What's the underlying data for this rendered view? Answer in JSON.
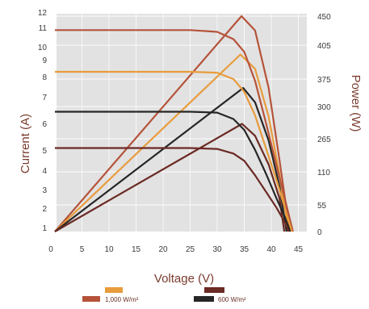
{
  "chart_data": {
    "type": "line",
    "xlabel": "Voltage (V)",
    "ylabel": "Current (A)",
    "y2label": "Power (W)",
    "xlim": [
      0,
      45
    ],
    "x_ticks": [
      "0",
      "5",
      "10",
      "15",
      "20",
      "25",
      "30",
      "35",
      "40",
      "45"
    ],
    "y_ticks": [
      "1",
      "2",
      "3",
      "4",
      "5",
      "6",
      "7",
      "8",
      "9",
      "10",
      "11",
      "12"
    ],
    "y2_ticks": [
      "0",
      "55",
      "110",
      "265",
      "300",
      "375",
      "405",
      "450"
    ],
    "colors": {
      "plot_bg": "#e2e2e2",
      "grid": "#f7f7f7",
      "1000": "#b5533a",
      "800": "#e89c3c",
      "600": "#262626",
      "400": "#6b2a24"
    },
    "iv_series": [
      {
        "key": "1000",
        "x": [
          0,
          25,
          30,
          33,
          35,
          37,
          39,
          41,
          42.5,
          44
        ],
        "y": [
          11.1,
          11.1,
          11.0,
          10.6,
          9.9,
          8.3,
          6.0,
          3.6,
          1.8,
          0
        ]
      },
      {
        "key": "800",
        "x": [
          0,
          25,
          30,
          33,
          35,
          37,
          39,
          41,
          42.5,
          43.8
        ],
        "y": [
          8.8,
          8.8,
          8.75,
          8.4,
          7.7,
          6.4,
          4.6,
          2.8,
          1.3,
          0
        ]
      },
      {
        "key": "600",
        "x": [
          0,
          25,
          30,
          33,
          35,
          37,
          39,
          41,
          42.5,
          43.5
        ],
        "y": [
          6.6,
          6.6,
          6.55,
          6.2,
          5.6,
          4.5,
          3.2,
          1.8,
          0.8,
          0
        ]
      },
      {
        "key": "400",
        "x": [
          0,
          25,
          30,
          33,
          35,
          37,
          39,
          41,
          42.5,
          43.2
        ],
        "y": [
          4.6,
          4.6,
          4.55,
          4.3,
          3.9,
          3.1,
          2.2,
          1.3,
          0.5,
          0
        ]
      }
    ],
    "pv_series": [
      {
        "key": "1000",
        "x": [
          0,
          34.5,
          37,
          39.5,
          41.5,
          43.4
        ],
        "y": [
          0,
          450,
          420,
          300,
          150,
          0
        ]
      },
      {
        "key": "800",
        "x": [
          0,
          34.3,
          37,
          39.5,
          41.5,
          43.2
        ],
        "y": [
          0,
          370,
          340,
          240,
          120,
          0
        ]
      },
      {
        "key": "600",
        "x": [
          0,
          34.8,
          37,
          39.5,
          41.5,
          42.8
        ],
        "y": [
          0,
          300,
          270,
          190,
          95,
          0
        ]
      },
      {
        "key": "400",
        "x": [
          0,
          34.6,
          37,
          39.5,
          41.5,
          42.4
        ],
        "y": [
          0,
          225,
          200,
          140,
          70,
          0
        ]
      }
    ],
    "legend": [
      {
        "key": "1000",
        "label": "1,000 W/m²",
        "color": "#b5533a"
      },
      {
        "key": "800",
        "label": "",
        "color": "#e89c3c"
      },
      {
        "key": "600",
        "label": "600 W/m²",
        "color": "#262626"
      },
      {
        "key": "400",
        "label": "",
        "color": "#6b2a24"
      }
    ]
  }
}
